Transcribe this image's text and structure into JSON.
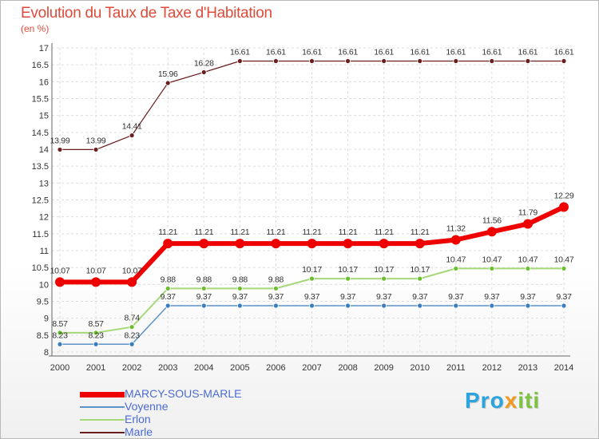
{
  "title": "Evolution du Taux de Taxe d'Habitation",
  "unit": "(en %)",
  "logo": {
    "p1": "Pro",
    "p2": "x",
    "p3": "iti"
  },
  "chart_data": {
    "type": "line",
    "x": [
      "2000",
      "2001",
      "2002",
      "2003",
      "2004",
      "2005",
      "2006",
      "2007",
      "2008",
      "2009",
      "2010",
      "2011",
      "2012",
      "2013",
      "2014"
    ],
    "ylim": [
      8,
      17
    ],
    "yticks": [
      "8",
      "8.5",
      "9",
      "9.5",
      "10",
      "10.5",
      "11",
      "11.5",
      "12",
      "12.5",
      "13",
      "13.5",
      "14",
      "14.5",
      "15",
      "15.5",
      "16",
      "16.5",
      "17"
    ],
    "grid": true,
    "series": [
      {
        "name": "Marle",
        "color": "#6b1e1e",
        "dot": "#6b1e1e",
        "width": 1.2,
        "r": 3,
        "values": [
          13.99,
          13.99,
          14.41,
          15.96,
          16.28,
          16.61,
          16.61,
          16.61,
          16.61,
          16.61,
          16.61,
          16.61,
          16.61,
          16.61,
          16.61
        ],
        "labels": [
          "13.99",
          "13.99",
          "14.41",
          "15.96",
          "16.28",
          "16.61",
          "16.61",
          "16.61",
          "16.61",
          "16.61",
          "16.61",
          "16.61",
          "16.61",
          "16.61",
          "16.61"
        ]
      },
      {
        "name": "Erlon",
        "color": "#a6d87a",
        "dot": "#6bbf2e",
        "width": 2,
        "r": 3,
        "values": [
          8.57,
          8.57,
          8.74,
          9.88,
          9.88,
          9.88,
          9.88,
          10.17,
          10.17,
          10.17,
          10.17,
          10.47,
          10.47,
          10.47,
          10.47
        ],
        "labels": [
          "8.57",
          "8.57",
          "8.74",
          "9.88",
          "9.88",
          "9.88",
          "9.88",
          "10.17",
          "10.17",
          "10.17",
          "10.17",
          "10.47",
          "10.47",
          "10.47",
          "10.47"
        ]
      },
      {
        "name": "Voyenne",
        "color": "#5b93c7",
        "dot": "#3a7cc0",
        "width": 1.5,
        "r": 3,
        "values": [
          8.23,
          8.23,
          8.23,
          9.37,
          9.37,
          9.37,
          9.37,
          9.37,
          9.37,
          9.37,
          9.37,
          9.37,
          9.37,
          9.37,
          9.37
        ],
        "labels": [
          "8.23",
          "8.23",
          "8.23",
          "9.37",
          "9.37",
          "9.37",
          "9.37",
          "9.37",
          "9.37",
          "9.37",
          "9.37",
          "9.37",
          "9.37",
          "9.37",
          "9.37"
        ]
      },
      {
        "name": "MARCY-SOUS-MARLE",
        "color": "#ee0000",
        "dot": "#ee0000",
        "width": 6,
        "r": 6,
        "values": [
          10.07,
          10.07,
          10.07,
          11.21,
          11.21,
          11.21,
          11.21,
          11.21,
          11.21,
          11.21,
          11.21,
          11.32,
          11.56,
          11.79,
          12.29
        ],
        "labels": [
          "10.07",
          "10.07",
          "10.07",
          "11.21",
          "11.21",
          "11.21",
          "11.21",
          "11.21",
          "11.21",
          "11.21",
          "11.21",
          "11.32",
          "11.56",
          "11.79",
          "12.29"
        ]
      }
    ],
    "legend": [
      {
        "name": "MARCY-SOUS-MARLE",
        "color": "#ee0000",
        "thickness": 7
      },
      {
        "name": "Voyenne",
        "color": "#5b93c7",
        "thickness": 2
      },
      {
        "name": "Erlon",
        "color": "#a6d87a",
        "thickness": 2
      },
      {
        "name": "Marle",
        "color": "#6b1e1e",
        "thickness": 2
      }
    ]
  }
}
